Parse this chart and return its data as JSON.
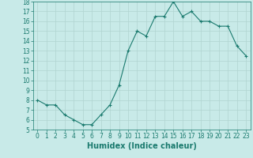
{
  "x": [
    0,
    1,
    2,
    3,
    4,
    5,
    6,
    7,
    8,
    9,
    10,
    11,
    12,
    13,
    14,
    15,
    16,
    17,
    18,
    19,
    20,
    21,
    22,
    23
  ],
  "y": [
    8.0,
    7.5,
    7.5,
    6.5,
    6.0,
    5.5,
    5.5,
    6.5,
    7.5,
    9.5,
    13.0,
    15.0,
    14.5,
    16.5,
    16.5,
    18.0,
    16.5,
    17.0,
    16.0,
    16.0,
    15.5,
    15.5,
    13.5,
    12.5
  ],
  "xlim": [
    -0.5,
    23.5
  ],
  "ylim": [
    5,
    18
  ],
  "yticks": [
    5,
    6,
    7,
    8,
    9,
    10,
    11,
    12,
    13,
    14,
    15,
    16,
    17,
    18
  ],
  "xticks": [
    0,
    1,
    2,
    3,
    4,
    5,
    6,
    7,
    8,
    9,
    10,
    11,
    12,
    13,
    14,
    15,
    16,
    17,
    18,
    19,
    20,
    21,
    22,
    23
  ],
  "xlabel": "Humidex (Indice chaleur)",
  "line_color": "#1a7a6e",
  "marker": "+",
  "bg_color": "#c8eae8",
  "grid_color": "#b0d4d0",
  "tick_fontsize": 5.5,
  "xlabel_fontsize": 7,
  "title": ""
}
